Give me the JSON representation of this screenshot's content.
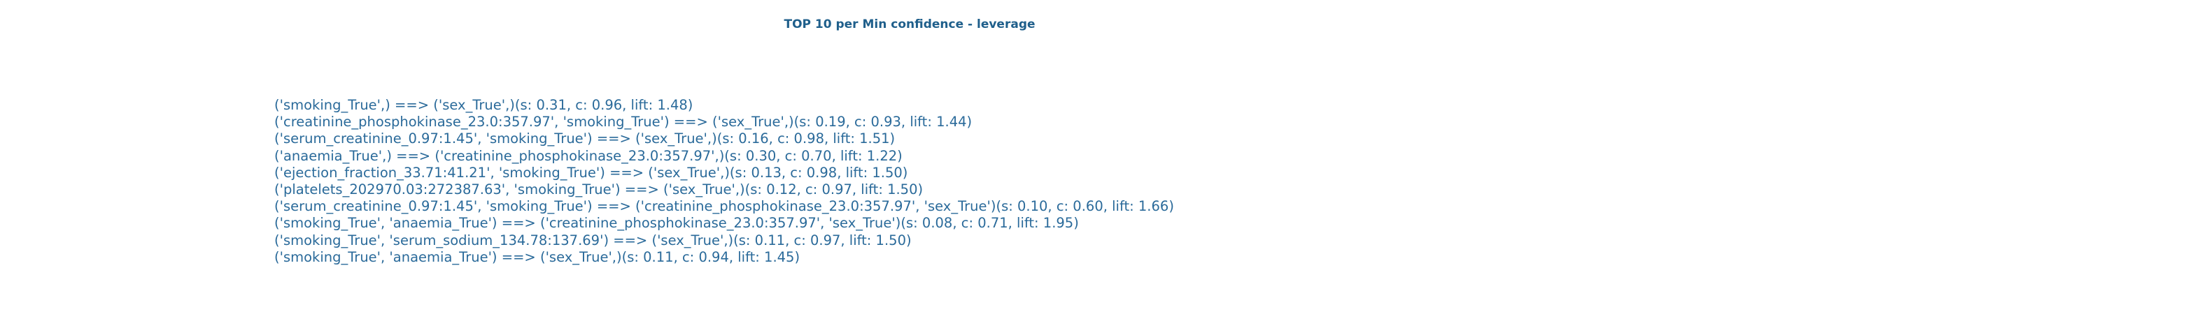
{
  "title": "TOP 10 per Min confidence - leverage",
  "rules": [
    "('smoking_True',) ==> ('sex_True',)(s: 0.31, c: 0.96, lift: 1.48)",
    "('creatinine_phosphokinase_23.0:357.97', 'smoking_True') ==> ('sex_True',)(s: 0.19, c: 0.93, lift: 1.44)",
    "('serum_creatinine_0.97:1.45', 'smoking_True') ==> ('sex_True',)(s: 0.16, c: 0.98, lift: 1.51)",
    "('anaemia_True',) ==> ('creatinine_phosphokinase_23.0:357.97',)(s: 0.30, c: 0.70, lift: 1.22)",
    "('ejection_fraction_33.71:41.21', 'smoking_True') ==> ('sex_True',)(s: 0.13, c: 0.98, lift: 1.50)",
    "('platelets_202970.03:272387.63', 'smoking_True') ==> ('sex_True',)(s: 0.12, c: 0.97, lift: 1.50)",
    "('serum_creatinine_0.97:1.45', 'smoking_True') ==> ('creatinine_phosphokinase_23.0:357.97', 'sex_True')(s: 0.10, c: 0.60, lift: 1.66)",
    "('smoking_True', 'anaemia_True') ==> ('creatinine_phosphokinase_23.0:357.97', 'sex_True')(s: 0.08, c: 0.71, lift: 1.95)",
    "('smoking_True', 'serum_sodium_134.78:137.69') ==> ('sex_True',)(s: 0.11, c: 0.97, lift: 1.50)",
    "('smoking_True', 'anaemia_True') ==> ('sex_True',)(s: 0.11, c: 0.94, lift: 1.45)"
  ]
}
